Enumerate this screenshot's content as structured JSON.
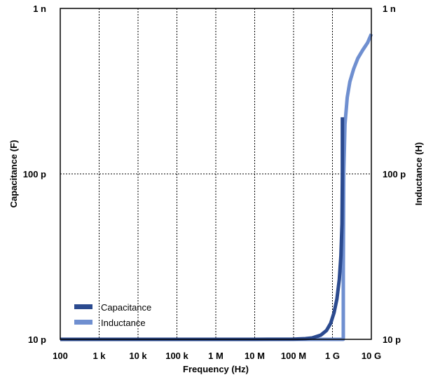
{
  "chart_data": {
    "type": "line",
    "title": "",
    "xlabel": "Frequency (Hz)",
    "ylabel_left": "Capacitance (F)",
    "ylabel_right": "Inductance (H)",
    "x_scale": "log",
    "y_scale": "log",
    "xlim": [
      100,
      10000000000
    ],
    "ylim": [
      1e-11,
      1e-09
    ],
    "grid": true,
    "legend_position": "bottom-left",
    "x_ticks": [
      {
        "value": 100,
        "label": "100"
      },
      {
        "value": 1000,
        "label": "1 k"
      },
      {
        "value": 10000,
        "label": "10 k"
      },
      {
        "value": 100000,
        "label": "100 k"
      },
      {
        "value": 1000000,
        "label": "1 M"
      },
      {
        "value": 10000000,
        "label": "10 M"
      },
      {
        "value": 100000000,
        "label": "100 M"
      },
      {
        "value": 1000000000,
        "label": "1 G"
      },
      {
        "value": 10000000000,
        "label": "10 G"
      }
    ],
    "y_ticks_left": [
      {
        "value": 1e-09,
        "label": "1 n"
      },
      {
        "value": 1e-10,
        "label": "100 p"
      },
      {
        "value": 1e-11,
        "label": "10 p"
      }
    ],
    "y_ticks_right": [
      {
        "value": 1e-09,
        "label": "1 n"
      },
      {
        "value": 1e-10,
        "label": "100 p"
      },
      {
        "value": 1e-11,
        "label": "10 p"
      }
    ],
    "series": [
      {
        "name": "Capacitance",
        "color": "#2b4a8f",
        "x": [
          100,
          1000,
          10000,
          100000,
          1000000,
          10000000,
          100000000,
          200000000,
          300000000,
          500000000,
          700000000,
          900000000,
          1100000000,
          1300000000,
          1500000000,
          1650000000,
          1760000000,
          1800000000,
          1800000000
        ],
        "y": [
          1e-11,
          1e-11,
          1e-11,
          1e-11,
          1e-11,
          1e-11,
          1.002e-11,
          1.01e-11,
          1.02e-11,
          1.06e-11,
          1.13e-11,
          1.25e-11,
          1.45e-11,
          1.75e-11,
          2.3e-11,
          3.2e-11,
          5e-11,
          1e-10,
          2.2e-10
        ]
      },
      {
        "name": "Inductance",
        "color": "#6f8fd0",
        "x": [
          100,
          10000000,
          100000000,
          1000000000,
          1700000000,
          1900000000,
          1900000000,
          1950000000,
          2100000000,
          2400000000,
          2800000000,
          3500000000,
          4500000000,
          6000000000,
          8000000000,
          10000000000
        ],
        "y": [
          1e-11,
          1e-11,
          1e-11,
          1e-11,
          1e-11,
          1e-11,
          2.5e-11,
          1e-10,
          2e-10,
          2.9e-10,
          3.6e-10,
          4.3e-10,
          5e-10,
          5.6e-10,
          6.2e-10,
          7e-10
        ]
      }
    ]
  }
}
